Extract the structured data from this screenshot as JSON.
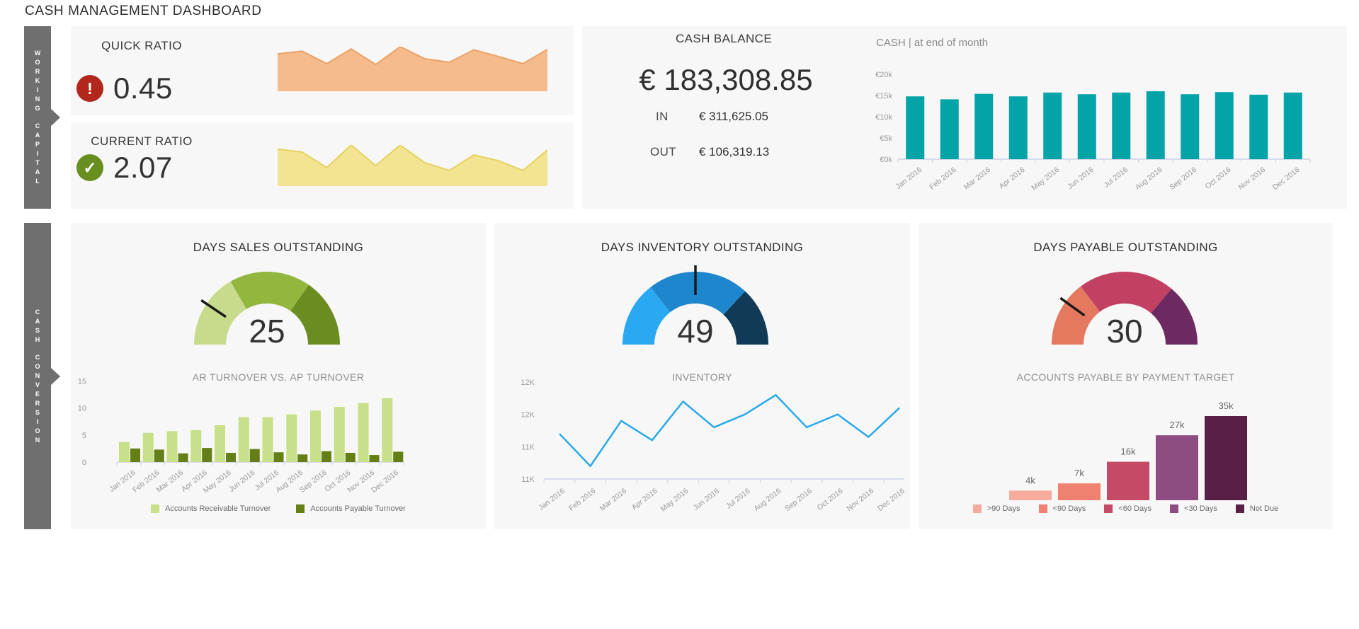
{
  "title": "CASH MANAGEMENT DASHBOARD",
  "sidebar": {
    "tabs": [
      {
        "id": "working-capital",
        "label": "WORKING CAPITAL"
      },
      {
        "id": "cash-conversion",
        "label": "CASH CONVERSION"
      }
    ]
  },
  "kpis": {
    "quick_ratio": {
      "title": "QUICK RATIO",
      "value": "0.45",
      "status_icon": "alert-icon",
      "icon_glyph": "!",
      "icon_color": "#b2271b",
      "spark_fill": "#f5bb8d",
      "spark_stroke": "#eca266",
      "spark": [
        8.4,
        9.0,
        6.2,
        9.5,
        6.0,
        10.0,
        7.3,
        6.5,
        9.3,
        7.8,
        6.2,
        9.4
      ]
    },
    "current_ratio": {
      "title": "CURRENT RATIO",
      "value": "2.07",
      "status_icon": "check-icon",
      "icon_glyph": "✓",
      "icon_color": "#688e1f",
      "spark_fill": "#f3e492",
      "spark_stroke": "#e6d160",
      "spark": [
        9.0,
        8.3,
        4.5,
        10.0,
        5.0,
        10.0,
        5.7,
        3.8,
        7.6,
        6.2,
        3.8,
        8.8
      ]
    }
  },
  "cash_balance": {
    "title": "CASH BALANCE",
    "value": "€ 183,308.85",
    "in_label": "IN",
    "in_value": "€ 311,625.05",
    "out_label": "OUT",
    "out_value": "€ 106,319.13"
  },
  "gauges": [
    {
      "id": "dso",
      "title": "DAYS SALES OUTSTANDING",
      "value": "25",
      "needle_angle": 146,
      "segments": [
        {
          "from": 180,
          "to": 120,
          "color": "#c8da8b"
        },
        {
          "from": 120,
          "to": 55,
          "color": "#93b63e"
        },
        {
          "from": 55,
          "to": 0,
          "color": "#6b8c20"
        }
      ]
    },
    {
      "id": "dio",
      "title": "DAYS INVENTORY OUTSTANDING",
      "value": "49",
      "needle_angle": 90,
      "segments": [
        {
          "from": 180,
          "to": 128,
          "color": "#2aa9f2"
        },
        {
          "from": 128,
          "to": 47,
          "color": "#1d86cd"
        },
        {
          "from": 47,
          "to": 0,
          "color": "#103a55"
        }
      ]
    },
    {
      "id": "dpo",
      "title": "DAYS PAYABLE OUTSTANDING",
      "value": "30",
      "needle_angle": 144,
      "segments": [
        {
          "from": 180,
          "to": 127,
          "color": "#e5795f"
        },
        {
          "from": 127,
          "to": 50,
          "color": "#c24163"
        },
        {
          "from": 50,
          "to": 0,
          "color": "#6c2a61"
        }
      ]
    }
  ],
  "chart_data": [
    {
      "id": "cash-by-month",
      "type": "bar",
      "title": "CASH | at end of month",
      "categories": [
        "Jan 2016",
        "Feb 2016",
        "Mar 2016",
        "Apr 2016",
        "May 2016",
        "Jun 2016",
        "Jul 2016",
        "Aug 2016",
        "Sep 2016",
        "Oct 2016",
        "Nov 2016",
        "Dec 2016"
      ],
      "values": [
        14.8,
        14.1,
        15.4,
        14.8,
        15.7,
        15.3,
        15.7,
        16.0,
        15.3,
        15.8,
        15.2,
        15.7
      ],
      "unit": "thousand EUR",
      "ylabels": [
        "€20k",
        "€15k",
        "€10k",
        "€5k",
        "€0k"
      ],
      "ylim": [
        0,
        20
      ],
      "color": "#04a3a8"
    },
    {
      "id": "ar-vs-ap",
      "type": "bar",
      "title": "AR TURNOVER VS. AP TURNOVER",
      "categories": [
        "Jan 2016",
        "Feb 2016",
        "Mar 2016",
        "Apr 2016",
        "May 2016",
        "Jun 2016",
        "Jul 2016",
        "Aug 2016",
        "Sep 2016",
        "Oct 2016",
        "Nov 2016",
        "Dec 2016"
      ],
      "series": [
        {
          "name": "Accounts Receivable Turnover",
          "color": "#c8e08a",
          "values": [
            3.7,
            5.4,
            5.7,
            5.9,
            6.8,
            8.3,
            8.3,
            8.8,
            9.5,
            10.2,
            10.9,
            11.8
          ]
        },
        {
          "name": "Accounts Payable Turnover",
          "color": "#647f15",
          "values": [
            2.5,
            2.3,
            1.6,
            2.6,
            1.7,
            2.4,
            1.8,
            1.4,
            2.0,
            1.7,
            1.3,
            1.9
          ]
        }
      ],
      "yticks": [
        "15",
        "10",
        "5",
        "0"
      ],
      "ylim": [
        0,
        15
      ]
    },
    {
      "id": "inventory",
      "type": "line",
      "title": "INVENTORY",
      "categories": [
        "Jan 2016",
        "Feb 2016",
        "Mar 2016",
        "Apr 2016",
        "May 2016",
        "Jun 2016",
        "Jul 2016",
        "Aug 2016",
        "Sep 2016",
        "Oct 2016",
        "Nov 2016",
        "Dec 2016"
      ],
      "values": [
        11.7,
        11.2,
        11.9,
        11.6,
        12.2,
        11.8,
        12.0,
        12.3,
        11.8,
        12.0,
        11.65,
        12.1
      ],
      "unit": "K",
      "ylabels": [
        "12K",
        "12K",
        "11K",
        "11K"
      ],
      "ylim": [
        11,
        12.5
      ],
      "color": "#29a9e9"
    },
    {
      "id": "ap-by-target",
      "type": "bar",
      "title": "ACCOUNTS PAYABLE BY PAYMENT TARGET",
      "categories": [
        ">90 Days",
        "<90 Days",
        "<60 Days",
        "<30 Days",
        "Not Due"
      ],
      "values": [
        4,
        7,
        16,
        27,
        35
      ],
      "value_labels": [
        "4k",
        "7k",
        "16k",
        "27k",
        "35k"
      ],
      "colors": [
        "#f6ab9d",
        "#f08170",
        "#c44a66",
        "#8d4d81",
        "#5a1f47"
      ],
      "ylim": [
        0,
        40
      ]
    }
  ]
}
